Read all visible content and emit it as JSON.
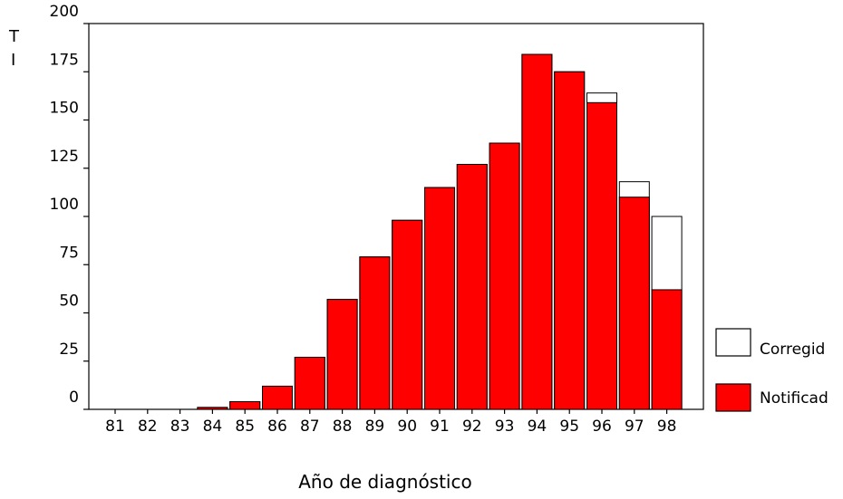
{
  "chart_data": {
    "type": "bar",
    "categories": [
      "81",
      "82",
      "83",
      "84",
      "85",
      "86",
      "87",
      "88",
      "89",
      "90",
      "91",
      "92",
      "93",
      "94",
      "95",
      "96",
      "97",
      "98"
    ],
    "series": [
      {
        "name": "Corregid",
        "values": [
          0,
          0,
          0,
          1,
          4,
          12,
          27,
          57,
          79,
          98,
          115,
          127,
          138,
          184,
          175,
          164,
          118,
          100
        ],
        "color": "#ffffff"
      },
      {
        "name": "Notificad",
        "values": [
          0,
          0,
          0,
          1,
          4,
          12,
          27,
          57,
          79,
          98,
          115,
          127,
          138,
          184,
          175,
          159,
          110,
          62
        ],
        "color": "#ff0000"
      }
    ],
    "y_ticks": [
      "0",
      "25",
      "50",
      "75",
      "100",
      "125",
      "150",
      "175",
      "200"
    ],
    "ylim": [
      0,
      200
    ],
    "ylabel_lines": [
      "T",
      "I"
    ],
    "xlabel": "Año de diagnóstico",
    "legend_position": "right"
  }
}
